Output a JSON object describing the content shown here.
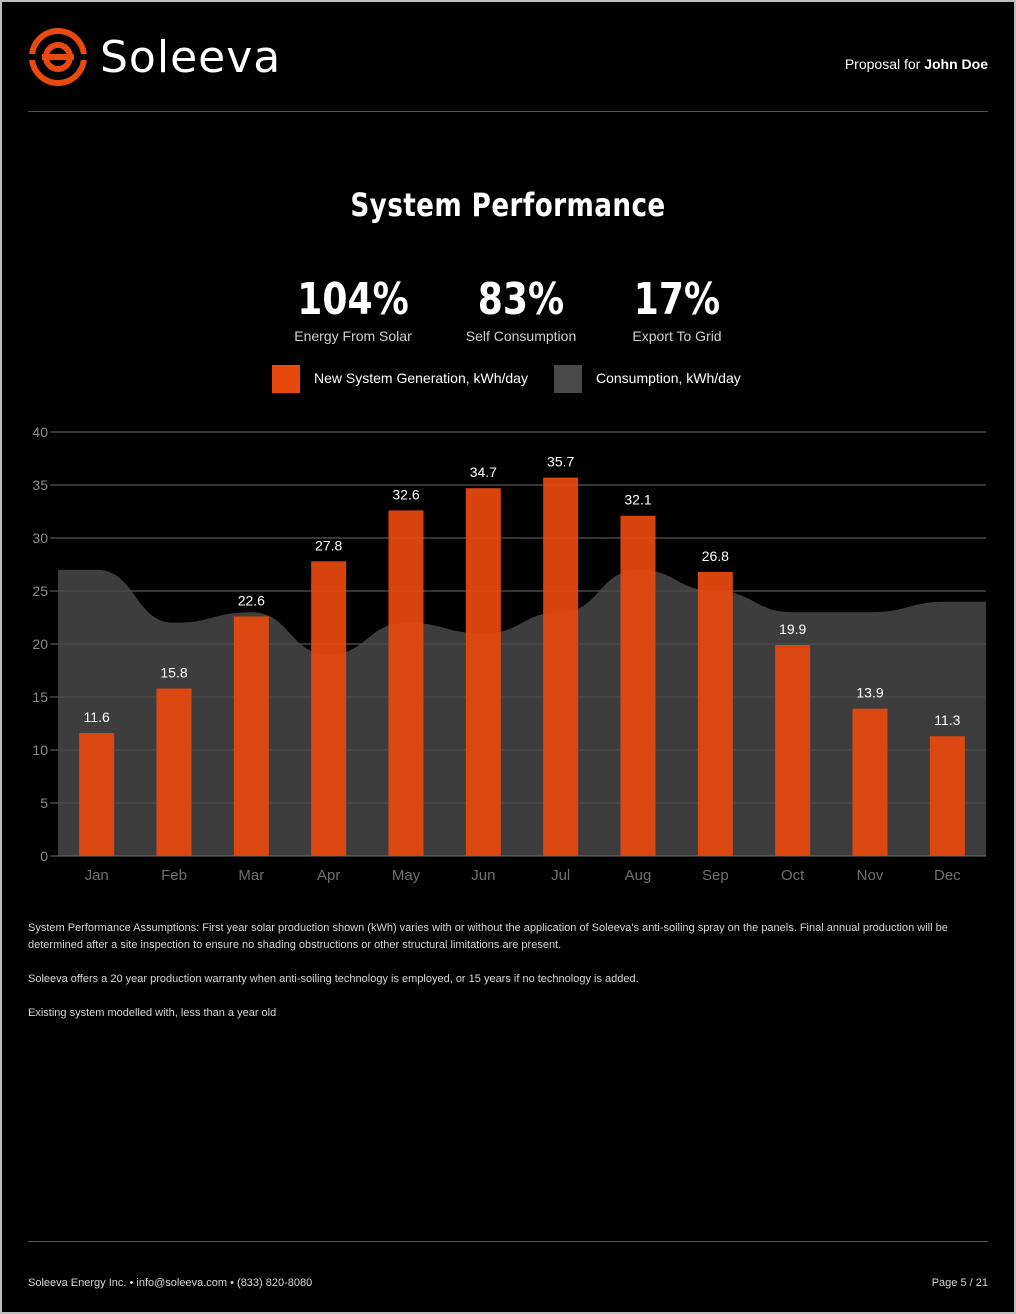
{
  "header": {
    "brand": "Soleeva",
    "proposal_prefix": "Proposal for",
    "client_name": "John Doe",
    "logo_icon": "soleeva-logo-icon",
    "accent_color": "#e8490f"
  },
  "title": "System Performance",
  "stats": [
    {
      "value": "104%",
      "label": "Energy From Solar"
    },
    {
      "value": "83%",
      "label": "Self Consumption"
    },
    {
      "value": "17%",
      "label": "Export To Grid"
    }
  ],
  "legend": [
    {
      "label": "New System Generation, kWh/day",
      "color": "#e8490f"
    },
    {
      "label": "Consumption, kWh/day",
      "color": "#4a4a4a"
    }
  ],
  "chart_data": {
    "type": "bar",
    "categories": [
      "Jan",
      "Feb",
      "Mar",
      "Apr",
      "May",
      "Jun",
      "Jul",
      "Aug",
      "Sep",
      "Oct",
      "Nov",
      "Dec"
    ],
    "series": [
      {
        "name": "New System Generation, kWh/day",
        "type": "bar",
        "color": "#e8490f",
        "values": [
          11.6,
          15.8,
          22.6,
          27.8,
          32.6,
          34.7,
          35.7,
          32.1,
          26.8,
          19.9,
          13.9,
          11.3
        ]
      },
      {
        "name": "Consumption, kWh/day",
        "type": "area",
        "color": "#4a4a4a",
        "values": [
          27,
          22,
          23,
          19,
          22,
          21,
          23,
          27,
          25,
          23,
          23,
          24
        ]
      }
    ],
    "yticks": [
      0,
      5,
      10,
      15,
      20,
      25,
      30,
      35,
      40
    ],
    "ylim": [
      0,
      40
    ],
    "grid": true,
    "data_labels": true,
    "legend_position": "top"
  },
  "notes": [
    "System Performance Assumptions: First year solar production shown (kWh) varies with or without the application of Soleeva's anti-soiling spray on the panels. Final annual production will be determined after a site inspection to ensure no shading obstructions or other structural limitations are present.",
    "Soleeva offers a 20 year production warranty when anti-soiling technology is employed, or 15 years if no technology is added.",
    "Existing system modelled with, less than a year old"
  ],
  "footer": {
    "contact": "Soleeva Energy Inc. • info@soleeva.com • (833) 820-8080",
    "page": "Page 5 / 21"
  }
}
